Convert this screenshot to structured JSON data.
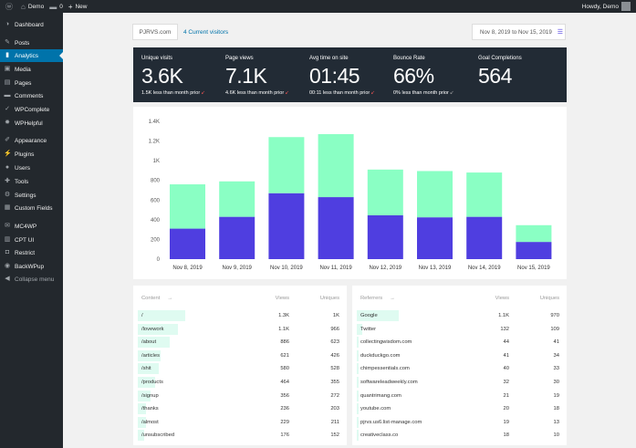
{
  "adminbar": {
    "site": "Demo",
    "comments": "0",
    "new": "New",
    "howdy": "Howdy, Demo"
  },
  "sidebar": {
    "items": [
      {
        "label": "Dashboard",
        "icon": "dashboard-icon",
        "glyph": "◑"
      },
      {
        "label": "Posts",
        "icon": "pin-icon",
        "glyph": "✎"
      },
      {
        "label": "Analytics",
        "icon": "chart-icon",
        "glyph": "▮",
        "active": true
      },
      {
        "label": "Media",
        "icon": "media-icon",
        "glyph": "▣"
      },
      {
        "label": "Pages",
        "icon": "page-icon",
        "glyph": "▤"
      },
      {
        "label": "Comments",
        "icon": "comment-icon",
        "glyph": "▬"
      },
      {
        "label": "WPComplete",
        "icon": "check-icon",
        "glyph": "✓"
      },
      {
        "label": "WPHelpful",
        "icon": "star-icon",
        "glyph": "✸"
      },
      {
        "label": "Appearance",
        "icon": "brush-icon",
        "glyph": "✐"
      },
      {
        "label": "Plugins",
        "icon": "plugin-icon",
        "glyph": "⚡"
      },
      {
        "label": "Users",
        "icon": "user-icon",
        "glyph": "●"
      },
      {
        "label": "Tools",
        "icon": "wrench-icon",
        "glyph": "✚"
      },
      {
        "label": "Settings",
        "icon": "settings-icon",
        "glyph": "⚙"
      },
      {
        "label": "Custom Fields",
        "icon": "fields-icon",
        "glyph": "▦"
      },
      {
        "label": "MC4WP",
        "icon": "mail-icon",
        "glyph": "✉"
      },
      {
        "label": "CPT UI",
        "icon": "cpt-icon",
        "glyph": "▥"
      },
      {
        "label": "Restrict",
        "icon": "lock-icon",
        "glyph": "◘"
      },
      {
        "label": "BackWPup",
        "icon": "backup-icon",
        "glyph": "◉"
      },
      {
        "label": "Collapse menu",
        "icon": "collapse-icon",
        "glyph": "◀",
        "collapse": true
      }
    ]
  },
  "filters": {
    "site": "PJRVS.com",
    "visitors": "4 Current visitors",
    "date_range": "Nov 8, 2019 to Nov 15, 2019"
  },
  "kpis": [
    {
      "label": "Unique visits",
      "value": "3.6K",
      "compare": "1.5K less than month prior"
    },
    {
      "label": "Page views",
      "value": "7.1K",
      "compare": "4.6K less than month prior"
    },
    {
      "label": "Avg time on site",
      "value": "01:45",
      "compare": "00:11 less than month prior"
    },
    {
      "label": "Bounce Rate",
      "value": "66%",
      "compare": "0% less than month prior"
    },
    {
      "label": "Goal Completions",
      "value": "564",
      "compare": ""
    }
  ],
  "chart_data": {
    "type": "bar",
    "stacked": true,
    "categories": [
      "Nov 8, 2019",
      "Nov 9, 2019",
      "Nov 10, 2019",
      "Nov 11, 2019",
      "Nov 12, 2019",
      "Nov 13, 2019",
      "Nov 14, 2019",
      "Nov 15, 2019"
    ],
    "series": [
      {
        "values": [
          310,
          430,
          670,
          630,
          445,
          425,
          430,
          175
        ],
        "color": "#4f3ee0"
      },
      {
        "values": [
          450,
          360,
          570,
          640,
          465,
          470,
          450,
          170
        ],
        "color": "#8affc4"
      }
    ],
    "yticks": [
      "0",
      "200",
      "400",
      "600",
      "800",
      "1K",
      "1.2K",
      "1.4K"
    ],
    "ylim": [
      0,
      1400
    ],
    "grid": false
  },
  "content_table": {
    "headers": {
      "name": "Content",
      "views": "Views",
      "uniques": "Uniques"
    },
    "rows": [
      {
        "name": "/",
        "views": "1.3K",
        "uniques": "1K",
        "bar": 1.0
      },
      {
        "name": "/lovework",
        "views": "1.1K",
        "uniques": "966",
        "bar": 0.85
      },
      {
        "name": "/about",
        "views": "886",
        "uniques": "623",
        "bar": 0.68
      },
      {
        "name": "/articles",
        "views": "621",
        "uniques": "426",
        "bar": 0.48
      },
      {
        "name": "/shit",
        "views": "580",
        "uniques": "528",
        "bar": 0.45
      },
      {
        "name": "/products",
        "views": "464",
        "uniques": "355",
        "bar": 0.36
      },
      {
        "name": "/signup",
        "views": "356",
        "uniques": "272",
        "bar": 0.27
      },
      {
        "name": "/thanks",
        "views": "236",
        "uniques": "203",
        "bar": 0.18
      },
      {
        "name": "/almost",
        "views": "229",
        "uniques": "211",
        "bar": 0.18
      },
      {
        "name": "/unsubscribed",
        "views": "176",
        "uniques": "152",
        "bar": 0.14
      }
    ]
  },
  "referrers_table": {
    "headers": {
      "name": "Referrers",
      "views": "Views",
      "uniques": "Uniques"
    },
    "rows": [
      {
        "name": "Google",
        "views": "1.1K",
        "uniques": "970",
        "bar": 1.0
      },
      {
        "name": "Twitter",
        "views": "132",
        "uniques": "109",
        "bar": 0.12
      },
      {
        "name": "collectingwisdom.com",
        "views": "44",
        "uniques": "41",
        "bar": 0.04
      },
      {
        "name": "duckduckgo.com",
        "views": "41",
        "uniques": "34",
        "bar": 0.04
      },
      {
        "name": "chimpessentials.com",
        "views": "40",
        "uniques": "33",
        "bar": 0.035
      },
      {
        "name": "softwareleadweekly.com",
        "views": "32",
        "uniques": "30",
        "bar": 0.03
      },
      {
        "name": "quantrimang.com",
        "views": "21",
        "uniques": "19",
        "bar": 0.02
      },
      {
        "name": "youtube.com",
        "views": "20",
        "uniques": "18",
        "bar": 0.02
      },
      {
        "name": "pjrvs.us6.list-manage.com",
        "views": "19",
        "uniques": "13",
        "bar": 0.02
      },
      {
        "name": "creativeclass.co",
        "views": "18",
        "uniques": "10",
        "bar": 0.015
      }
    ]
  }
}
